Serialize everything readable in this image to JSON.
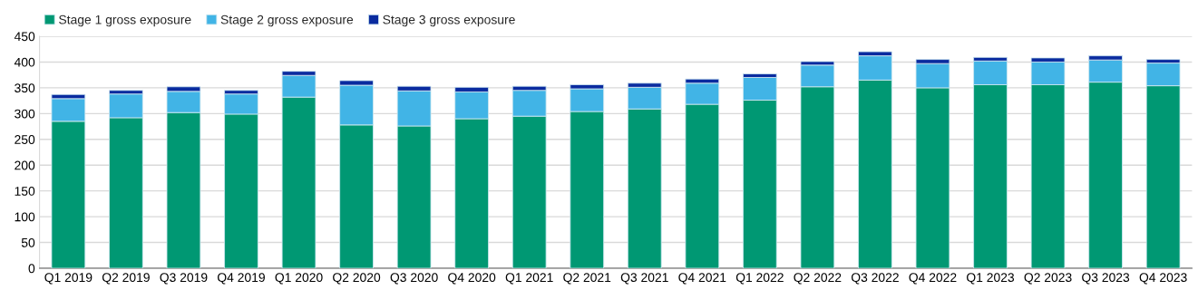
{
  "chart_data": {
    "type": "bar",
    "stacked": true,
    "categories": [
      "Q1 2019",
      "Q2 2019",
      "Q3 2019",
      "Q4 2019",
      "Q1 2020",
      "Q2 2020",
      "Q3 2020",
      "Q4 2020",
      "Q1 2021",
      "Q2 2021",
      "Q3 2021",
      "Q4 2021",
      "Q1 2022",
      "Q2 2022",
      "Q3 2022",
      "Q4 2022",
      "Q1 2023",
      "Q2 2023",
      "Q3 2023",
      "Q4 2023"
    ],
    "series": [
      {
        "name": "Stage 1 gross exposure",
        "color": "#009873",
        "values": [
          285,
          292,
          302,
          299,
          332,
          278,
          276,
          290,
          295,
          304,
          309,
          318,
          326,
          352,
          365,
          350,
          356,
          356,
          361,
          354
        ]
      },
      {
        "name": "Stage 2 gross exposure",
        "color": "#41b4e6",
        "values": [
          44,
          46,
          41,
          39,
          42,
          77,
          68,
          52,
          50,
          44,
          42,
          41,
          44,
          42,
          47,
          47,
          46,
          44,
          43,
          44
        ]
      },
      {
        "name": "Stage 3 gross exposure",
        "color": "#0a2b9f",
        "values": [
          8,
          7,
          9,
          7,
          8,
          9,
          9,
          9,
          8,
          8,
          8,
          8,
          7,
          7,
          8,
          8,
          7,
          8,
          8,
          7
        ]
      }
    ],
    "ylim": [
      0,
      450
    ],
    "yticks": [
      0,
      50,
      100,
      150,
      200,
      250,
      300,
      350,
      400,
      450
    ],
    "grid": "y",
    "legend": "top left"
  }
}
